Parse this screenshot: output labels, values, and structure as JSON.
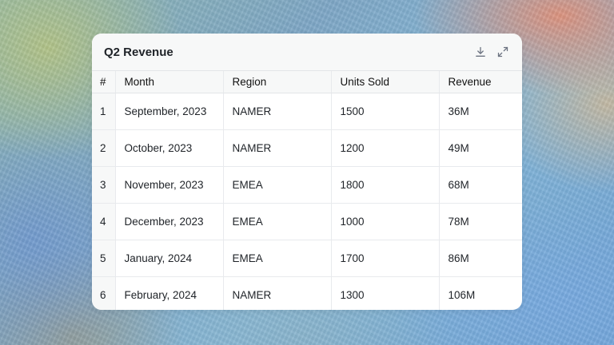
{
  "card": {
    "title": "Q2 Revenue",
    "actions": [
      {
        "name": "download",
        "icon": "download-icon"
      },
      {
        "name": "expand",
        "icon": "expand-icon"
      }
    ]
  },
  "table": {
    "headers": [
      "#",
      "Month",
      "Region",
      "Units Sold",
      "Revenue"
    ],
    "rows": [
      [
        "1",
        "September, 2023",
        "NAMER",
        "1500",
        "36M"
      ],
      [
        "2",
        "October, 2023",
        "NAMER",
        "1200",
        "49M"
      ],
      [
        "3",
        "November, 2023",
        "EMEA",
        "1800",
        "68M"
      ],
      [
        "4",
        "December, 2023",
        "EMEA",
        "1000",
        "78M"
      ],
      [
        "5",
        "January, 2024",
        "EMEA",
        "1700",
        "86M"
      ],
      [
        "6",
        "February, 2024",
        "NAMER",
        "1300",
        "106M"
      ]
    ]
  },
  "colors": {
    "header_bg": "#f7f8f8",
    "text": "#1f2328",
    "border": "#e8eaed",
    "icon": "#6b7280"
  }
}
